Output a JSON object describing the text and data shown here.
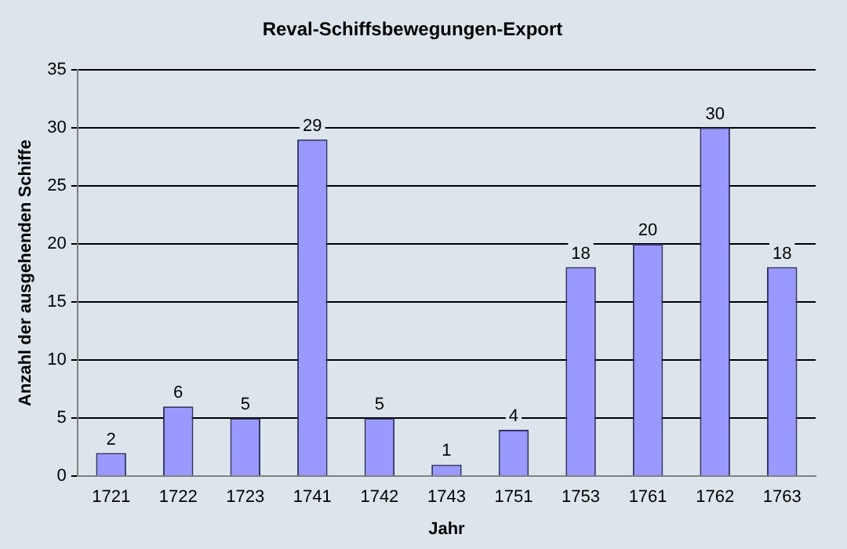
{
  "chart_data": {
    "type": "bar",
    "title": "Reval-Schiffsbewegungen-Export",
    "xlabel": "Jahr",
    "ylabel": "Anzahl der ausgehenden Schiffe",
    "categories": [
      "1721",
      "1722",
      "1723",
      "1741",
      "1742",
      "1743",
      "1751",
      "1753",
      "1761",
      "1762",
      "1763"
    ],
    "values": [
      2,
      6,
      5,
      29,
      5,
      1,
      4,
      18,
      20,
      30,
      18
    ],
    "color": "#9999ff",
    "ylim": [
      0,
      35
    ],
    "yticks": [
      0,
      5,
      10,
      15,
      20,
      25,
      30,
      35
    ],
    "grid": "y",
    "data_labels": true
  }
}
